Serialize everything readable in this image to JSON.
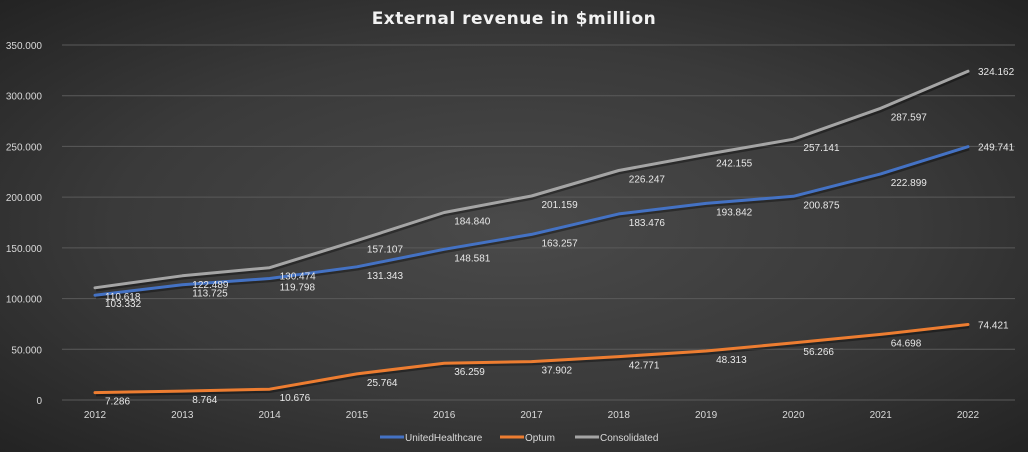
{
  "chart_data": {
    "type": "line",
    "title": "External revenue in $million",
    "xlabel": "",
    "ylabel": "",
    "categories": [
      "2012",
      "2013",
      "2014",
      "2015",
      "2016",
      "2017",
      "2018",
      "2019",
      "2020",
      "2021",
      "2022"
    ],
    "ylim": [
      0,
      350
    ],
    "y_ticks": [
      0,
      50,
      100,
      150,
      200,
      250,
      300,
      350
    ],
    "y_tick_labels": [
      "0",
      "50.000",
      "100.000",
      "150.000",
      "200.000",
      "250.000",
      "300.000",
      "350.000"
    ],
    "grid": true,
    "legend_position": "bottom",
    "series": [
      {
        "name": "UnitedHealthcare",
        "color": "#4472c4",
        "values": [
          103.332,
          113.725,
          119.798,
          131.343,
          148.581,
          163.257,
          183.476,
          193.842,
          200.875,
          222.899,
          249.741
        ],
        "labels": [
          "103.332",
          "113.725",
          "119.798",
          "131.343",
          "148.581",
          "163.257",
          "183.476",
          "193.842",
          "200.875",
          "222.899",
          "249.741"
        ]
      },
      {
        "name": "Optum",
        "color": "#ed7d31",
        "values": [
          7.286,
          8.764,
          10.676,
          25.764,
          36.259,
          37.902,
          42.771,
          48.313,
          56.266,
          64.698,
          74.421
        ],
        "labels": [
          "7.286",
          "8.764",
          "10.676",
          "25.764",
          "36.259",
          "37.902",
          "42.771",
          "48.313",
          "56.266",
          "64.698",
          "74.421"
        ]
      },
      {
        "name": "Consolidated",
        "color": "#a5a5a5",
        "values": [
          110.618,
          122.489,
          130.474,
          157.107,
          184.84,
          201.159,
          226.247,
          242.155,
          257.141,
          287.597,
          324.162
        ],
        "labels": [
          "110.618",
          "122.489",
          "130.474",
          "157.107",
          "184.840",
          "201.159",
          "226.247",
          "242.155",
          "257.141",
          "287.597",
          "324.162"
        ]
      }
    ]
  }
}
